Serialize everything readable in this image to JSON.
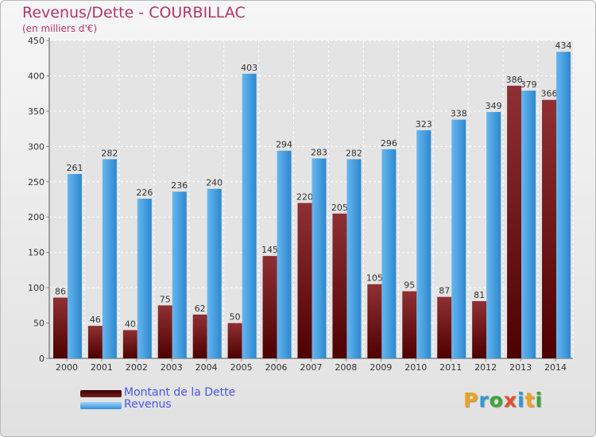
{
  "header": {
    "title": "Revenus/Dette - COURBILLAC",
    "subtitle": "(en milliers d'€)"
  },
  "colors": {
    "title": "#b5346a",
    "dette": "#7a1e22",
    "revenus": "#44a3e6",
    "legend_text": "#4a55ee"
  },
  "legend": [
    {
      "label": "Montant de la Dette",
      "color": "#7a1e22"
    },
    {
      "label": "Revenus",
      "color": "#44a3e6"
    }
  ],
  "logo": {
    "letters": [
      {
        "t": "P",
        "color": "#f0a21d"
      },
      {
        "t": "r",
        "color": "#2f9ad8"
      },
      {
        "t": "o",
        "color": "#3aa635"
      },
      {
        "t": "x",
        "color": "#e64d2a"
      },
      {
        "t": "i",
        "color": "#2f9ad8"
      },
      {
        "t": "t",
        "color": "#f0a21d"
      },
      {
        "t": "i",
        "color": "#3aa635"
      }
    ]
  },
  "chart_data": {
    "type": "bar",
    "title": "Revenus/Dette - COURBILLAC",
    "subtitle": "(en milliers d'€)",
    "categories": [
      "2000",
      "2001",
      "2002",
      "2003",
      "2004",
      "2005",
      "2006",
      "2007",
      "2008",
      "2009",
      "2010",
      "2011",
      "2012",
      "2013",
      "2014"
    ],
    "series": [
      {
        "name": "Montant de la Dette",
        "color": "#7a1e22",
        "values": [
          86,
          46,
          40,
          75,
          62,
          50,
          145,
          220,
          205,
          105,
          95,
          87,
          81,
          386,
          366
        ]
      },
      {
        "name": "Revenus",
        "color": "#44a3e6",
        "values": [
          261,
          282,
          226,
          236,
          240,
          403,
          294,
          283,
          282,
          296,
          323,
          338,
          349,
          379,
          434
        ]
      }
    ],
    "ylim": [
      0,
      450
    ],
    "yticks": [
      0,
      50,
      100,
      150,
      200,
      250,
      300,
      350,
      400,
      450
    ],
    "grid": true,
    "legend_position": "bottom-left"
  }
}
